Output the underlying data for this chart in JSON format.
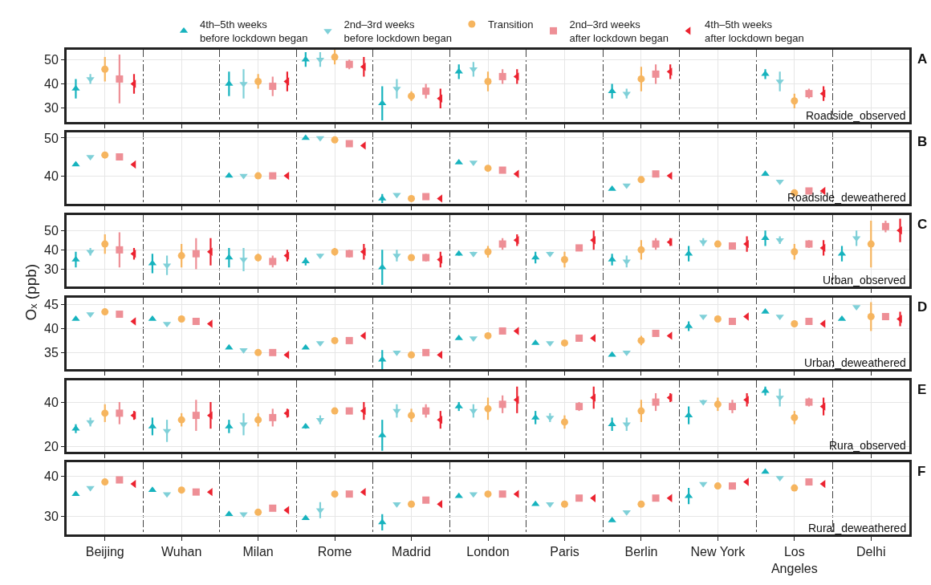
{
  "chart_data": [
    {
      "type": "scatter",
      "ylim": [
        24.5,
        54
      ],
      "yticks": [
        30,
        40,
        50
      ],
      "grid": true,
      "legend": "top",
      "tick_labels": "y",
      "annotations": [
        "A",
        "Roadside_observed"
      ],
      "series": [
        {
          "name": "4th–5th weeks\nbefore lockdown began",
          "color": "#17b3be",
          "marker": "triangle-up",
          "values": [
            38,
            null,
            40,
            50,
            32,
            45,
            null,
            37,
            null,
            44,
            null
          ],
          "errors": [
            4,
            null,
            5,
            3,
            7,
            3,
            null,
            3,
            null,
            2,
            null
          ]
        },
        {
          "name": "2nd–3rd weeks\nbefore lockdown began",
          "color": "#7fd0d8",
          "marker": "triangle-down",
          "values": [
            42,
            null,
            40,
            50,
            38,
            46,
            null,
            36,
            null,
            41,
            null
          ],
          "errors": [
            2,
            null,
            6,
            3,
            4,
            3,
            null,
            2,
            null,
            4,
            null
          ]
        },
        {
          "name": "Transition",
          "color": "#f6b55f",
          "marker": "circle",
          "values": [
            46,
            null,
            41,
            51,
            35,
            41,
            null,
            42,
            null,
            33,
            null
          ],
          "errors": [
            5,
            null,
            3,
            3,
            2,
            4,
            null,
            5,
            null,
            3,
            null
          ]
        },
        {
          "name": "2nd–3rd weeks\nafter lockdown began",
          "color": "#ee8f96",
          "marker": "square",
          "values": [
            42,
            null,
            39,
            48,
            37,
            43,
            null,
            44,
            null,
            36,
            null
          ],
          "errors": [
            10,
            null,
            4,
            2,
            3,
            3,
            null,
            4,
            null,
            2,
            null
          ]
        },
        {
          "name": "4th–5th weeks\nafter lockdown began",
          "color": "#ec2330",
          "marker": "triangle-left",
          "values": [
            40,
            null,
            41,
            47,
            34,
            43,
            null,
            45,
            null,
            36,
            null
          ],
          "errors": [
            4,
            null,
            4,
            4,
            4,
            3,
            null,
            3,
            null,
            3,
            null
          ]
        }
      ]
    },
    {
      "type": "scatter",
      "ylim": [
        32.5,
        51.5
      ],
      "yticks": [
        40,
        50
      ],
      "grid": true,
      "tick_labels": "y",
      "annotations": [
        "B",
        "Roadside_deweathered"
      ],
      "series": [
        {
          "color": "#17b3be",
          "marker": "triangle-up",
          "values": [
            43,
            null,
            40,
            50,
            34,
            43.5,
            null,
            36.5,
            null,
            40.5,
            null
          ],
          "errors": [
            null,
            null,
            null,
            null,
            1.2,
            null,
            null,
            null,
            null,
            null,
            null
          ]
        },
        {
          "color": "#7fd0d8",
          "marker": "triangle-down",
          "values": [
            45,
            null,
            40,
            50,
            35,
            43.5,
            null,
            37.5,
            null,
            38.5,
            null
          ]
        },
        {
          "color": "#f6b55f",
          "marker": "circle",
          "values": [
            45.5,
            null,
            40,
            49.5,
            34,
            42,
            null,
            39,
            null,
            35.5,
            null
          ]
        },
        {
          "color": "#ee8f96",
          "marker": "square",
          "values": [
            45,
            null,
            40,
            48.5,
            34.5,
            41.5,
            null,
            40.5,
            null,
            36,
            null
          ]
        },
        {
          "color": "#ec2330",
          "marker": "triangle-left",
          "values": [
            43,
            null,
            40,
            48,
            34,
            40.5,
            null,
            40,
            null,
            36,
            null
          ]
        }
      ]
    },
    {
      "type": "scatter",
      "ylim": [
        21,
        58
      ],
      "yticks": [
        30,
        40,
        50
      ],
      "grid": true,
      "tick_labels": "y",
      "ylabel": "Oₓ (ppb)",
      "annotations": [
        "C",
        "Urban_observed"
      ],
      "series": [
        {
          "color": "#17b3be",
          "marker": "triangle-up",
          "values": [
            35,
            33,
            36,
            34,
            31,
            38,
            36,
            35,
            38,
            46,
            38
          ],
          "errors": [
            4,
            5,
            5,
            2,
            9,
            1,
            3,
            3,
            4,
            4,
            4
          ]
        },
        {
          "color": "#7fd0d8",
          "marker": "triangle-down",
          "values": [
            39,
            32,
            35,
            37,
            37,
            38,
            38,
            34,
            44,
            45,
            46
          ],
          "errors": [
            2,
            5,
            6,
            1,
            3,
            1,
            1,
            3,
            2,
            2,
            4
          ]
        },
        {
          "color": "#f6b55f",
          "marker": "circle",
          "values": [
            43,
            37,
            36,
            39,
            36,
            39,
            35,
            40,
            43,
            39,
            43
          ],
          "errors": [
            5,
            6,
            2,
            2,
            1,
            3,
            4,
            5,
            1,
            4,
            12
          ]
        },
        {
          "color": "#ee8f96",
          "marker": "square",
          "values": [
            40,
            38,
            34,
            38,
            36,
            43,
            41,
            43,
            42,
            43,
            52
          ],
          "errors": [
            9,
            8,
            3,
            2,
            2,
            3,
            1,
            3,
            1,
            2,
            3
          ]
        },
        {
          "color": "#ec2330",
          "marker": "triangle-left",
          "values": [
            38,
            39,
            37,
            39,
            35,
            45,
            45,
            44,
            43,
            41,
            50
          ],
          "errors": [
            3,
            7,
            3,
            4,
            4,
            3,
            5,
            2,
            4,
            4,
            6
          ]
        }
      ]
    },
    {
      "type": "scatter",
      "ylim": [
        31.5,
        46.5
      ],
      "yticks": [
        35,
        40,
        45
      ],
      "grid": true,
      "tick_labels": "y",
      "annotations": [
        "D",
        "Urban_deweathered"
      ],
      "series": [
        {
          "color": "#17b3be",
          "marker": "triangle-up",
          "values": [
            42,
            42,
            36,
            36,
            33.5,
            38,
            37,
            34.5,
            40.5,
            43.5,
            42
          ],
          "errors": [
            null,
            null,
            null,
            null,
            2,
            null,
            null,
            null,
            1,
            null,
            null
          ]
        },
        {
          "color": "#7fd0d8",
          "marker": "triangle-down",
          "values": [
            43,
            41,
            35.5,
            37,
            35,
            38,
            37,
            35,
            42.5,
            42.5,
            44.5
          ]
        },
        {
          "color": "#f6b55f",
          "marker": "circle",
          "values": [
            43.5,
            42,
            35,
            37.5,
            34.5,
            38.5,
            37,
            37.5,
            42,
            41,
            42.5
          ],
          "errors": [
            null,
            null,
            null,
            null,
            null,
            null,
            null,
            1,
            null,
            null,
            3
          ]
        },
        {
          "color": "#ee8f96",
          "marker": "square",
          "values": [
            43,
            41.5,
            35,
            37.5,
            35,
            39.5,
            38,
            39,
            41.5,
            41.5,
            42.5
          ]
        },
        {
          "color": "#ec2330",
          "marker": "triangle-left",
          "values": [
            41.5,
            41,
            34.5,
            38.5,
            34.5,
            39.5,
            38,
            38.5,
            42.5,
            41,
            42
          ],
          "errors": [
            null,
            null,
            null,
            null,
            null,
            null,
            null,
            null,
            null,
            null,
            1.5
          ]
        }
      ]
    },
    {
      "type": "scatter",
      "ylim": [
        17.5,
        50
      ],
      "yticks": [
        20,
        40
      ],
      "grid": true,
      "tick_labels": "y",
      "annotations": [
        "E",
        "Rura_observed"
      ],
      "series": [
        {
          "color": "#17b3be",
          "marker": "triangle-up",
          "values": [
            28,
            29,
            29,
            29,
            25,
            38,
            33,
            30,
            34,
            45,
            null
          ],
          "errors": [
            2,
            4,
            3,
            1,
            7,
            2,
            3,
            3,
            4,
            2,
            null
          ]
        },
        {
          "color": "#7fd0d8",
          "marker": "triangle-down",
          "values": [
            31,
            27,
            30,
            32,
            36,
            36,
            33,
            30,
            40,
            42,
            null
          ],
          "errors": [
            2,
            5,
            5,
            2,
            3,
            3,
            2,
            3,
            1,
            4,
            null
          ]
        },
        {
          "color": "#f6b55f",
          "marker": "circle",
          "values": [
            35,
            32,
            32,
            36,
            34,
            37,
            31,
            36,
            39,
            33,
            null
          ],
          "errors": [
            4,
            3,
            3,
            1,
            3,
            5,
            3,
            5,
            3,
            3,
            null
          ]
        },
        {
          "color": "#ee8f96",
          "marker": "square",
          "values": [
            35,
            34,
            33,
            36,
            36,
            39,
            38,
            40,
            38,
            40,
            null
          ],
          "errors": [
            5,
            7,
            4,
            1,
            3,
            4,
            2,
            4,
            3,
            2,
            null
          ]
        },
        {
          "color": "#ec2330",
          "marker": "triangle-left",
          "values": [
            34,
            34,
            35,
            36,
            32,
            41,
            42,
            42,
            41,
            38,
            null
          ],
          "errors": [
            2,
            6,
            2,
            4,
            4,
            6,
            5,
            2,
            3,
            4,
            null
          ]
        }
      ]
    },
    {
      "type": "scatter",
      "categories": [
        "Beijing",
        "Wuhan",
        "Milan",
        "Rome",
        "Madrid",
        "London",
        "Paris",
        "Berlin",
        "New York",
        "Los\nAngeles",
        "Delhi"
      ],
      "ylim": [
        25.5,
        43.3
      ],
      "yticks": [
        30,
        40
      ],
      "grid": true,
      "annotations": [
        "F",
        "Rural_deweathered"
      ],
      "series": [
        {
          "color": "#17b3be",
          "marker": "triangle-up",
          "values": [
            35.5,
            36.5,
            30.5,
            29.5,
            28.5,
            35,
            33,
            29,
            35,
            41,
            null
          ],
          "errors": [
            null,
            null,
            null,
            null,
            2,
            null,
            null,
            null,
            2,
            null,
            null
          ]
        },
        {
          "color": "#7fd0d8",
          "marker": "triangle-down",
          "values": [
            37,
            35.5,
            30.5,
            31.5,
            33,
            35.5,
            33,
            31,
            38,
            39.5,
            null
          ],
          "errors": [
            null,
            null,
            null,
            2,
            null,
            null,
            null,
            null,
            null,
            null,
            null
          ]
        },
        {
          "color": "#f6b55f",
          "marker": "circle",
          "values": [
            38.5,
            36.5,
            31,
            35.5,
            33,
            35.5,
            33,
            33,
            37.5,
            37,
            null
          ]
        },
        {
          "color": "#ee8f96",
          "marker": "square",
          "values": [
            39,
            36,
            32,
            35.5,
            34,
            35.5,
            34.5,
            34.5,
            37.5,
            38.5,
            null
          ]
        },
        {
          "color": "#ec2330",
          "marker": "triangle-left",
          "values": [
            38,
            36,
            31.5,
            36,
            33,
            35.5,
            34.5,
            34.5,
            38.5,
            38,
            null
          ]
        }
      ]
    }
  ]
}
